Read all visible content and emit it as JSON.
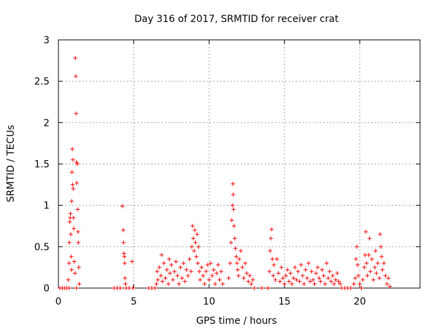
{
  "chart_data": {
    "type": "scatter",
    "title": "Day 316 of 2017, SRMTID for receiver crat",
    "xlabel": "GPS time / hours",
    "ylabel": "SRMTID / TECUs",
    "xlim": [
      0,
      24
    ],
    "ylim": [
      0,
      3
    ],
    "xticks": [
      0,
      5,
      10,
      15,
      20
    ],
    "xtick_labels": [
      "0",
      "5",
      "10",
      "15",
      "20"
    ],
    "yticks": [
      0,
      0.5,
      1,
      1.5,
      2,
      2.5,
      3
    ],
    "ytick_labels": [
      "0",
      "0.5",
      "1",
      "1.5",
      "2",
      "2.5",
      "3"
    ],
    "grid": true,
    "marker": "+",
    "series": [
      {
        "name": "SRMTID",
        "color": "#ff0000",
        "points": [
          [
            0.1,
            0
          ],
          [
            0.25,
            0
          ],
          [
            0.4,
            0
          ],
          [
            0.55,
            0
          ],
          [
            0.7,
            0
          ],
          [
            0.65,
            0.1
          ],
          [
            0.7,
            0.3
          ],
          [
            0.72,
            0.55
          ],
          [
            0.75,
            0.8
          ],
          [
            0.78,
            0.85
          ],
          [
            0.8,
            0.9
          ],
          [
            0.82,
            0.65
          ],
          [
            0.85,
            0.38
          ],
          [
            0.87,
            0.22
          ],
          [
            0.88,
            1.05
          ],
          [
            0.9,
            1.4
          ],
          [
            0.92,
            1.68
          ],
          [
            0.94,
            1.25
          ],
          [
            0.96,
            1.55
          ],
          [
            0.98,
            1.2
          ],
          [
            1.0,
            0.85
          ],
          [
            1.02,
            0.72
          ],
          [
            1.05,
            0.32
          ],
          [
            1.1,
            0.18
          ],
          [
            1.2,
            0
          ],
          [
            1.12,
            2.78
          ],
          [
            1.15,
            2.56
          ],
          [
            1.18,
            2.11
          ],
          [
            1.2,
            1.52
          ],
          [
            1.22,
            1.27
          ],
          [
            1.25,
            1.5
          ],
          [
            1.28,
            0.95
          ],
          [
            1.3,
            0.68
          ],
          [
            1.32,
            0.55
          ],
          [
            1.35,
            0.25
          ],
          [
            1.38,
            0.05
          ],
          [
            3.7,
            0
          ],
          [
            3.9,
            0
          ],
          [
            4.1,
            0
          ],
          [
            4.25,
            0.99
          ],
          [
            4.3,
            0.7
          ],
          [
            4.32,
            0.55
          ],
          [
            4.35,
            0.42
          ],
          [
            4.38,
            0.38
          ],
          [
            4.4,
            0.3
          ],
          [
            4.42,
            0.12
          ],
          [
            4.45,
            0.05
          ],
          [
            4.5,
            0
          ],
          [
            4.7,
            0
          ],
          [
            4.88,
            0.32
          ],
          [
            4.95,
            0
          ],
          [
            6.0,
            0
          ],
          [
            6.2,
            0
          ],
          [
            6.4,
            0
          ],
          [
            6.5,
            0.05
          ],
          [
            6.55,
            0.2
          ],
          [
            6.6,
            0.1
          ],
          [
            6.7,
            0.25
          ],
          [
            6.8,
            0.15
          ],
          [
            6.85,
            0.4
          ],
          [
            6.9,
            0.08
          ],
          [
            7.0,
            0.3
          ],
          [
            7.1,
            0.12
          ],
          [
            7.2,
            0.22
          ],
          [
            7.3,
            0.05
          ],
          [
            7.35,
            0.35
          ],
          [
            7.4,
            0.18
          ],
          [
            7.5,
            0.28
          ],
          [
            7.6,
            0.1
          ],
          [
            7.7,
            0.2
          ],
          [
            7.8,
            0.32
          ],
          [
            7.9,
            0.15
          ],
          [
            8.0,
            0.05
          ],
          [
            8.1,
            0.25
          ],
          [
            8.2,
            0.12
          ],
          [
            8.3,
            0.3
          ],
          [
            8.4,
            0.08
          ],
          [
            8.5,
            0.22
          ],
          [
            8.6,
            0.15
          ],
          [
            8.7,
            0.35
          ],
          [
            8.8,
            0.2
          ],
          [
            8.85,
            0.5
          ],
          [
            8.9,
            0.75
          ],
          [
            8.95,
            0.6
          ],
          [
            9.0,
            0.45
          ],
          [
            9.05,
            0.7
          ],
          [
            9.1,
            0.55
          ],
          [
            9.15,
            0.38
          ],
          [
            9.2,
            0.65
          ],
          [
            9.25,
            0.3
          ],
          [
            9.3,
            0.5
          ],
          [
            9.35,
            0.2
          ],
          [
            9.4,
            0.1
          ],
          [
            9.5,
            0.25
          ],
          [
            9.6,
            0.15
          ],
          [
            9.7,
            0.05
          ],
          [
            9.8,
            0.2
          ],
          [
            9.9,
            0.28
          ],
          [
            10.0,
            0.1
          ],
          [
            10.1,
            0.3
          ],
          [
            10.2,
            0.15
          ],
          [
            10.3,
            0.22
          ],
          [
            10.4,
            0.05
          ],
          [
            10.5,
            0.18
          ],
          [
            10.6,
            0.28
          ],
          [
            10.7,
            0.1
          ],
          [
            10.8,
            0.2
          ],
          [
            10.9,
            0.05
          ],
          [
            11.3,
            0.12
          ],
          [
            11.4,
            0.3
          ],
          [
            11.45,
            0.55
          ],
          [
            11.5,
            0.82
          ],
          [
            11.55,
            1.0
          ],
          [
            11.58,
            1.26
          ],
          [
            11.6,
            1.13
          ],
          [
            11.62,
            0.95
          ],
          [
            11.65,
            0.75
          ],
          [
            11.7,
            0.6
          ],
          [
            11.75,
            0.48
          ],
          [
            11.8,
            0.38
          ],
          [
            11.85,
            0.3
          ],
          [
            11.9,
            0.22
          ],
          [
            11.95,
            0.15
          ],
          [
            12.0,
            0.35
          ],
          [
            12.1,
            0.45
          ],
          [
            12.2,
            0.25
          ],
          [
            12.3,
            0.12
          ],
          [
            12.4,
            0.3
          ],
          [
            12.5,
            0.18
          ],
          [
            12.6,
            0.08
          ],
          [
            12.7,
            0.15
          ],
          [
            12.8,
            0.05
          ],
          [
            12.9,
            0.1
          ],
          [
            13.0,
            0
          ],
          [
            13.5,
            0
          ],
          [
            13.9,
            0
          ],
          [
            14.0,
            0.2
          ],
          [
            14.05,
            0.45
          ],
          [
            14.1,
            0.6
          ],
          [
            14.15,
            0.71
          ],
          [
            14.2,
            0.35
          ],
          [
            14.25,
            0.15
          ],
          [
            14.3,
            0.28
          ],
          [
            14.4,
            0.1
          ],
          [
            14.5,
            0.35
          ],
          [
            14.6,
            0.18
          ],
          [
            14.7,
            0.08
          ],
          [
            14.8,
            0.25
          ],
          [
            14.9,
            0.12
          ],
          [
            15.0,
            0.05
          ],
          [
            15.1,
            0.15
          ],
          [
            15.2,
            0.22
          ],
          [
            15.3,
            0.08
          ],
          [
            15.4,
            0.18
          ],
          [
            15.5,
            0.05
          ],
          [
            15.6,
            0.12
          ],
          [
            15.7,
            0.25
          ],
          [
            15.8,
            0.1
          ],
          [
            15.9,
            0.2
          ],
          [
            16.0,
            0.08
          ],
          [
            16.1,
            0.28
          ],
          [
            16.2,
            0.15
          ],
          [
            16.3,
            0.05
          ],
          [
            16.4,
            0.22
          ],
          [
            16.5,
            0.12
          ],
          [
            16.6,
            0.3
          ],
          [
            16.7,
            0.08
          ],
          [
            16.8,
            0.2
          ],
          [
            16.9,
            0.1
          ],
          [
            17.0,
            0.05
          ],
          [
            17.1,
            0.18
          ],
          [
            17.2,
            0.25
          ],
          [
            17.3,
            0.12
          ],
          [
            17.4,
            0.08
          ],
          [
            17.5,
            0.22
          ],
          [
            17.6,
            0.15
          ],
          [
            17.7,
            0.05
          ],
          [
            17.8,
            0.3
          ],
          [
            17.9,
            0.12
          ],
          [
            18.0,
            0.2
          ],
          [
            18.1,
            0.08
          ],
          [
            18.2,
            0.15
          ],
          [
            18.3,
            0.05
          ],
          [
            18.4,
            0.1
          ],
          [
            18.5,
            0.18
          ],
          [
            18.6,
            0.08
          ],
          [
            18.7,
            0.05
          ],
          [
            18.8,
            0
          ],
          [
            19.0,
            0
          ],
          [
            19.2,
            0
          ],
          [
            19.4,
            0
          ],
          [
            19.6,
            0.05
          ],
          [
            19.7,
            0.12
          ],
          [
            19.75,
            0.35
          ],
          [
            19.8,
            0.5
          ],
          [
            19.85,
            0.28
          ],
          [
            19.9,
            0.15
          ],
          [
            20.0,
            0.05
          ],
          [
            20.1,
            0
          ],
          [
            20.2,
            0.1
          ],
          [
            20.3,
            0.25
          ],
          [
            20.35,
            0.4
          ],
          [
            20.4,
            0.68
          ],
          [
            20.45,
            0.3
          ],
          [
            20.5,
            0.15
          ],
          [
            20.6,
            0.4
          ],
          [
            20.65,
            0.6
          ],
          [
            20.7,
            0.2
          ],
          [
            20.8,
            0.35
          ],
          [
            20.9,
            0.1
          ],
          [
            21.0,
            0.25
          ],
          [
            21.05,
            0.45
          ],
          [
            21.1,
            0.18
          ],
          [
            21.2,
            0.3
          ],
          [
            21.3,
            0.12
          ],
          [
            21.35,
            0.65
          ],
          [
            21.4,
            0.5
          ],
          [
            21.45,
            0.38
          ],
          [
            21.5,
            0.22
          ],
          [
            21.6,
            0.3
          ],
          [
            21.7,
            0.15
          ],
          [
            21.8,
            0.05
          ],
          [
            21.9,
            0.12
          ],
          [
            22.0,
            0.02
          ]
        ]
      }
    ]
  }
}
